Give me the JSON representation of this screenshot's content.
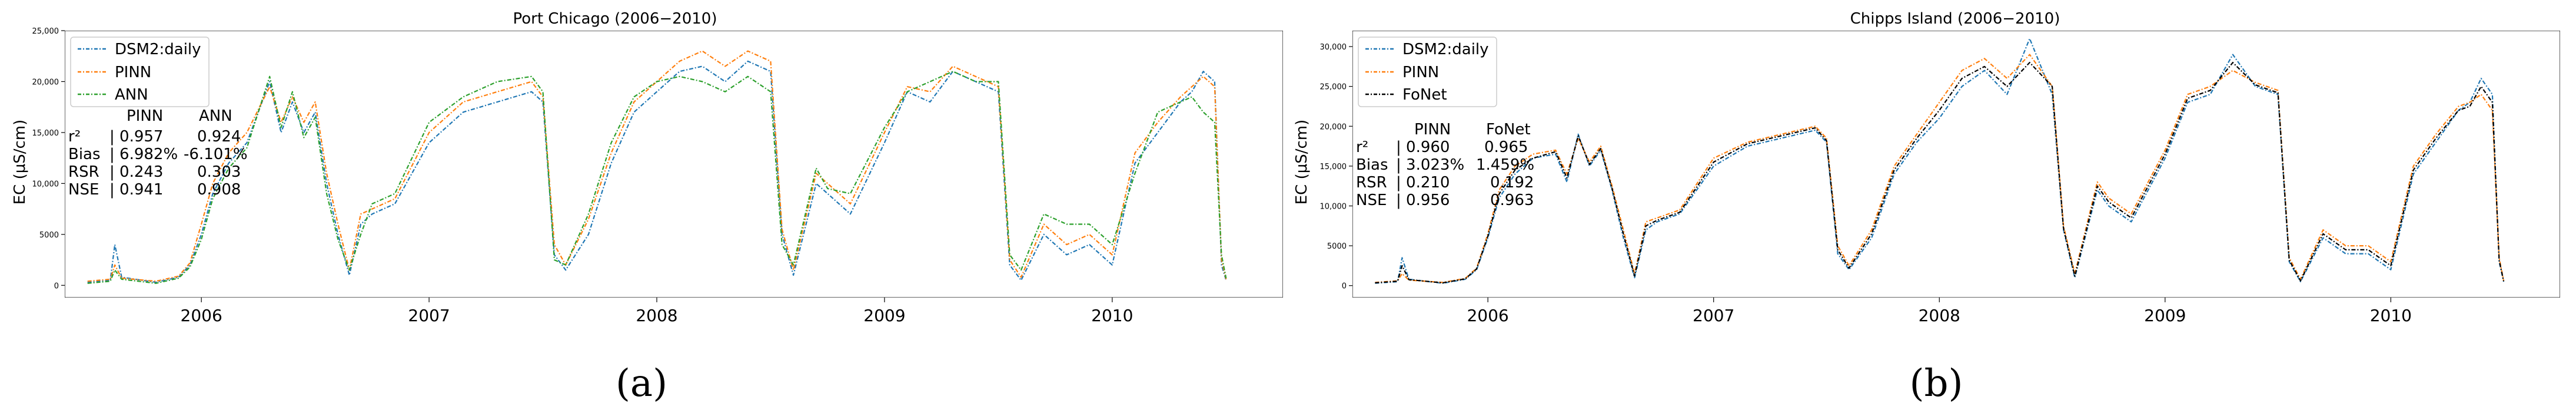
{
  "chart_data": [
    {
      "type": "line",
      "panel_label": "(a)",
      "title": "Port Chicago (2006−2010)",
      "xlabel": "",
      "ylabel": "EC (μS/cm)",
      "xlim": [
        2005.4,
        2010.75
      ],
      "ylim": [
        -1200,
        25000
      ],
      "x_ticks": [
        2006,
        2007,
        2008,
        2009,
        2010
      ],
      "x_tick_labels": [
        "2006",
        "2007",
        "2008",
        "2009",
        "2010"
      ],
      "y_ticks": [
        0,
        5000,
        10000,
        15000,
        20000,
        25000
      ],
      "y_tick_labels": [
        "0",
        "5000",
        "10,000",
        "15,000",
        "20,000",
        "25,000"
      ],
      "legend": {
        "placement": "upper-left",
        "entries": [
          "DSM2:daily",
          "PINN",
          "ANN"
        ]
      },
      "series": [
        {
          "name": "DSM2:daily",
          "color": "#1f77b4",
          "style": "dashed-dot",
          "x": [
            2005.5,
            2005.6,
            2005.62,
            2005.65,
            2005.8,
            2005.9,
            2005.95,
            2006.0,
            2006.05,
            2006.12,
            2006.2,
            2006.3,
            2006.35,
            2006.4,
            2006.45,
            2006.5,
            2006.55,
            2006.6,
            2006.65,
            2006.7,
            2006.75,
            2006.85,
            2007.0,
            2007.15,
            2007.3,
            2007.45,
            2007.5,
            2007.55,
            2007.6,
            2007.7,
            2007.8,
            2007.9,
            2008.0,
            2008.1,
            2008.2,
            2008.3,
            2008.4,
            2008.5,
            2008.55,
            2008.6,
            2008.7,
            2008.75,
            2008.85,
            2009.0,
            2009.1,
            2009.2,
            2009.3,
            2009.4,
            2009.5,
            2009.55,
            2009.6,
            2009.7,
            2009.8,
            2009.9,
            2010.0,
            2010.1,
            2010.2,
            2010.3,
            2010.35,
            2010.4,
            2010.45,
            2010.48,
            2010.5
          ],
          "y": [
            300,
            500,
            4000,
            800,
            300,
            800,
            2000,
            5000,
            9000,
            12000,
            14000,
            20000,
            15000,
            18000,
            15000,
            17000,
            10000,
            5000,
            1000,
            6000,
            7000,
            8000,
            14000,
            17000,
            18000,
            19000,
            18000,
            3000,
            1500,
            5000,
            12000,
            17000,
            19000,
            21000,
            21500,
            20000,
            22000,
            21000,
            5000,
            1000,
            10000,
            9000,
            7000,
            14000,
            19000,
            18000,
            21000,
            20000,
            19000,
            2000,
            500,
            5000,
            3000,
            4000,
            2000,
            12000,
            15000,
            18000,
            19000,
            21000,
            20000,
            2000,
            500
          ]
        },
        {
          "name": "PINN",
          "color": "#ff7f0e",
          "style": "dashed-dot",
          "x": [
            2005.5,
            2005.6,
            2005.62,
            2005.65,
            2005.8,
            2005.9,
            2005.95,
            2006.0,
            2006.05,
            2006.12,
            2006.2,
            2006.3,
            2006.35,
            2006.4,
            2006.45,
            2006.5,
            2006.55,
            2006.6,
            2006.65,
            2006.7,
            2006.75,
            2006.85,
            2007.0,
            2007.15,
            2007.3,
            2007.45,
            2007.5,
            2007.55,
            2007.6,
            2007.7,
            2007.8,
            2007.9,
            2008.0,
            2008.1,
            2008.2,
            2008.3,
            2008.4,
            2008.5,
            2008.55,
            2008.6,
            2008.7,
            2008.75,
            2008.85,
            2009.0,
            2009.1,
            2009.2,
            2009.3,
            2009.4,
            2009.5,
            2009.55,
            2009.6,
            2009.7,
            2009.8,
            2009.9,
            2010.0,
            2010.1,
            2010.2,
            2010.3,
            2010.35,
            2010.4,
            2010.45,
            2010.48,
            2010.5
          ],
          "y": [
            400,
            600,
            2000,
            700,
            400,
            900,
            2200,
            6000,
            10000,
            13000,
            15000,
            19500,
            16000,
            18500,
            16000,
            18000,
            11000,
            6000,
            1500,
            7000,
            7500,
            8500,
            15000,
            18000,
            19000,
            20000,
            18500,
            4000,
            2000,
            6500,
            13000,
            18000,
            20000,
            22000,
            23000,
            21500,
            23000,
            22000,
            5500,
            1500,
            11000,
            10000,
            8000,
            15000,
            19500,
            19000,
            21500,
            20500,
            19500,
            2500,
            800,
            6000,
            4000,
            5000,
            3000,
            13000,
            16000,
            18500,
            19500,
            20500,
            19500,
            2500,
            600
          ]
        },
        {
          "name": "ANN",
          "color": "#2ca02c",
          "style": "dashed-dot",
          "x": [
            2005.5,
            2005.6,
            2005.62,
            2005.65,
            2005.8,
            2005.9,
            2005.95,
            2006.0,
            2006.05,
            2006.12,
            2006.2,
            2006.3,
            2006.35,
            2006.4,
            2006.45,
            2006.5,
            2006.55,
            2006.6,
            2006.65,
            2006.7,
            2006.75,
            2006.85,
            2007.0,
            2007.15,
            2007.3,
            2007.45,
            2007.5,
            2007.55,
            2007.6,
            2007.7,
            2007.8,
            2007.9,
            2008.0,
            2008.1,
            2008.2,
            2008.3,
            2008.4,
            2008.5,
            2008.55,
            2008.6,
            2008.7,
            2008.75,
            2008.85,
            2009.0,
            2009.1,
            2009.2,
            2009.3,
            2009.4,
            2009.5,
            2009.55,
            2009.6,
            2009.7,
            2009.8,
            2009.9,
            2010.0,
            2010.1,
            2010.2,
            2010.3,
            2010.35,
            2010.4,
            2010.45,
            2010.48,
            2010.5
          ],
          "y": [
            200,
            400,
            1500,
            600,
            200,
            700,
            1800,
            4500,
            8500,
            11500,
            13500,
            20500,
            15500,
            19000,
            14500,
            16500,
            9000,
            4500,
            1500,
            5000,
            8000,
            9000,
            16000,
            18500,
            20000,
            20500,
            19000,
            2500,
            2000,
            7000,
            14000,
            18500,
            20000,
            20500,
            20000,
            19000,
            20500,
            19000,
            4000,
            2000,
            11500,
            9500,
            9000,
            15500,
            19000,
            20000,
            21000,
            20000,
            20000,
            3000,
            1500,
            7000,
            6000,
            6000,
            4000,
            11000,
            17000,
            18000,
            18500,
            17000,
            16000,
            3000,
            700
          ]
        }
      ],
      "annotation": {
        "header": [
          "",
          "PINN",
          "ANN"
        ],
        "rows": [
          [
            "r²",
            "| 0.957",
            "0.924"
          ],
          [
            "Bias",
            "| 6.982%",
            "-6.101%"
          ],
          [
            "RSR",
            "| 0.243",
            "0.303"
          ],
          [
            "NSE",
            "| 0.941",
            "0.908"
          ]
        ]
      }
    },
    {
      "type": "line",
      "panel_label": "(b)",
      "title": "Chipps Island (2006−2010)",
      "xlabel": "",
      "ylabel": "EC (μS/cm)",
      "xlim": [
        2005.4,
        2010.75
      ],
      "ylim": [
        -1500,
        32000
      ],
      "x_ticks": [
        2006,
        2007,
        2008,
        2009,
        2010
      ],
      "x_tick_labels": [
        "2006",
        "2007",
        "2008",
        "2009",
        "2010"
      ],
      "y_ticks": [
        0,
        5000,
        10000,
        15000,
        20000,
        25000,
        30000
      ],
      "y_tick_labels": [
        "0",
        "5000",
        "10,000",
        "15,000",
        "20,000",
        "25,000",
        "30,000"
      ],
      "legend": {
        "placement": "upper-left",
        "entries": [
          "DSM2:daily",
          "PINN",
          "FoNet"
        ]
      },
      "series": [
        {
          "name": "DSM2:daily",
          "color": "#1f77b4",
          "style": "dashed-dot",
          "x": [
            2005.5,
            2005.6,
            2005.62,
            2005.65,
            2005.8,
            2005.9,
            2005.95,
            2006.0,
            2006.05,
            2006.12,
            2006.2,
            2006.3,
            2006.35,
            2006.4,
            2006.45,
            2006.5,
            2006.55,
            2006.6,
            2006.65,
            2006.7,
            2006.75,
            2006.85,
            2007.0,
            2007.15,
            2007.3,
            2007.45,
            2007.5,
            2007.55,
            2007.6,
            2007.7,
            2007.8,
            2007.9,
            2008.0,
            2008.1,
            2008.2,
            2008.3,
            2008.4,
            2008.5,
            2008.55,
            2008.6,
            2008.7,
            2008.75,
            2008.85,
            2009.0,
            2009.1,
            2009.2,
            2009.3,
            2009.4,
            2009.5,
            2009.55,
            2009.6,
            2009.7,
            2009.8,
            2009.9,
            2010.0,
            2010.1,
            2010.2,
            2010.3,
            2010.35,
            2010.4,
            2010.45,
            2010.48,
            2010.5
          ],
          "y": [
            300,
            500,
            3500,
            800,
            300,
            800,
            2000,
            6000,
            11000,
            14000,
            16000,
            16500,
            13000,
            19000,
            15000,
            17000,
            12000,
            6000,
            1000,
            7000,
            8000,
            9000,
            15000,
            17500,
            18500,
            19500,
            18000,
            4000,
            2000,
            6000,
            14000,
            18000,
            21000,
            25000,
            27000,
            24000,
            31000,
            24000,
            7000,
            1000,
            12000,
            10000,
            8000,
            16000,
            23000,
            24000,
            29000,
            25000,
            24000,
            3000,
            500,
            6000,
            4000,
            4000,
            2000,
            14000,
            18000,
            22000,
            23000,
            26000,
            24000,
            3000,
            500
          ]
        },
        {
          "name": "PINN",
          "color": "#ff7f0e",
          "style": "dashed-dot",
          "x": [
            2005.5,
            2005.6,
            2005.62,
            2005.65,
            2005.8,
            2005.9,
            2005.95,
            2006.0,
            2006.05,
            2006.12,
            2006.2,
            2006.3,
            2006.35,
            2006.4,
            2006.45,
            2006.5,
            2006.55,
            2006.6,
            2006.65,
            2006.7,
            2006.75,
            2006.85,
            2007.0,
            2007.15,
            2007.3,
            2007.45,
            2007.5,
            2007.55,
            2007.6,
            2007.7,
            2007.8,
            2007.9,
            2008.0,
            2008.1,
            2008.2,
            2008.3,
            2008.4,
            2008.5,
            2008.55,
            2008.6,
            2008.7,
            2008.75,
            2008.85,
            2009.0,
            2009.1,
            2009.2,
            2009.3,
            2009.4,
            2009.5,
            2009.55,
            2009.6,
            2009.7,
            2009.8,
            2009.9,
            2010.0,
            2010.1,
            2010.2,
            2010.3,
            2010.35,
            2010.4,
            2010.45,
            2010.48,
            2010.5
          ],
          "y": [
            400,
            600,
            1500,
            700,
            400,
            900,
            2200,
            6500,
            12000,
            15000,
            16500,
            17000,
            14000,
            18500,
            15500,
            17500,
            12500,
            7000,
            1500,
            8000,
            8500,
            9500,
            16000,
            18000,
            19000,
            20000,
            18500,
            5000,
            2500,
            7000,
            15000,
            19000,
            23000,
            27000,
            28500,
            26000,
            29000,
            25000,
            7500,
            1500,
            13000,
            11000,
            9000,
            17000,
            24000,
            25000,
            27000,
            25500,
            24500,
            3500,
            800,
            7000,
            5000,
            5000,
            3000,
            15000,
            19000,
            22500,
            23000,
            24000,
            22000,
            3500,
            600
          ]
        },
        {
          "name": "FoNet",
          "color": "#000000",
          "style": "dashed-dot",
          "x": [
            2005.5,
            2005.6,
            2005.62,
            2005.65,
            2005.8,
            2005.9,
            2005.95,
            2006.0,
            2006.05,
            2006.12,
            2006.2,
            2006.3,
            2006.35,
            2006.4,
            2006.45,
            2006.5,
            2006.55,
            2006.6,
            2006.65,
            2006.7,
            2006.75,
            2006.85,
            2007.0,
            2007.15,
            2007.3,
            2007.45,
            2007.5,
            2007.55,
            2007.6,
            2007.7,
            2007.8,
            2007.9,
            2008.0,
            2008.1,
            2008.2,
            2008.3,
            2008.4,
            2008.5,
            2008.55,
            2008.6,
            2008.7,
            2008.75,
            2008.85,
            2009.0,
            2009.1,
            2009.2,
            2009.3,
            2009.4,
            2009.5,
            2009.55,
            2009.6,
            2009.7,
            2009.8,
            2009.9,
            2010.0,
            2010.1,
            2010.2,
            2010.3,
            2010.35,
            2010.4,
            2010.45,
            2010.48,
            2010.5
          ],
          "y": [
            350,
            550,
            2500,
            750,
            350,
            850,
            2100,
            6200,
            11500,
            14500,
            16000,
            16800,
            13500,
            18800,
            15200,
            17200,
            12200,
            6500,
            1200,
            7500,
            8200,
            9200,
            15500,
            17800,
            18800,
            19800,
            18200,
            4500,
            2200,
            6500,
            14500,
            18500,
            22000,
            26000,
            27500,
            25000,
            28000,
            25000,
            7200,
            1200,
            12500,
            10500,
            8500,
            16500,
            23500,
            24500,
            28000,
            25200,
            24200,
            3200,
            600,
            6500,
            4500,
            4500,
            2500,
            14500,
            18500,
            22000,
            22500,
            25000,
            23000,
            3200,
            550
          ]
        }
      ],
      "annotation": {
        "header": [
          "",
          "PINN",
          "FoNet"
        ],
        "rows": [
          [
            "r²",
            "| 0.960",
            "0.965"
          ],
          [
            "Bias",
            "| 3.023%",
            "1.459%"
          ],
          [
            "RSR",
            "| 0.210",
            "0.192"
          ],
          [
            "NSE",
            "| 0.956",
            "0.963"
          ]
        ]
      }
    }
  ]
}
